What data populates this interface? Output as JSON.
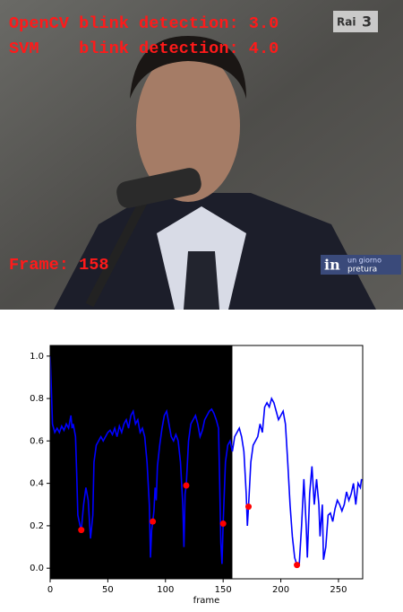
{
  "video": {
    "overlay_lines": [
      "OpenCV blink detection: 3.0",
      "SVM    blink detection: 4.0"
    ],
    "frame_label": "Frame: 158",
    "logo": "Rai",
    "logo_num": "3",
    "banner_big": "in",
    "banner_small": [
      "un giorno",
      "pretura"
    ]
  },
  "chart_data": {
    "type": "line",
    "xlabel": "frame",
    "xlim": [
      0,
      271
    ],
    "ylim": [
      -0.05,
      1.05
    ],
    "xticks": [
      0,
      50,
      100,
      150,
      200,
      250
    ],
    "yticks": [
      {
        "value": 0,
        "label": "0.0"
      },
      {
        "value": 0.2,
        "label": "0.2"
      },
      {
        "value": 0.4,
        "label": "0.4"
      },
      {
        "value": 0.6,
        "label": "0.6"
      },
      {
        "value": 0.8,
        "label": "0.8"
      },
      {
        "value": 1.0,
        "label": "1.0"
      }
    ],
    "shade_xrange": [
      0,
      158
    ],
    "shade_color": "#000000",
    "series": [
      {
        "color": "#0000ff",
        "style": "line",
        "x": [
          0,
          1,
          2,
          4,
          6,
          8,
          10,
          12,
          14,
          16,
          18,
          19,
          20,
          22,
          23,
          24,
          26,
          27,
          29,
          31,
          33,
          35,
          37,
          38,
          40,
          42,
          44,
          46,
          48,
          50,
          52,
          54,
          56,
          58,
          60,
          62,
          64,
          66,
          68,
          70,
          72,
          74,
          76,
          78,
          80,
          82,
          84,
          86,
          87,
          88,
          89,
          90,
          91,
          92,
          93,
          95,
          97,
          99,
          101,
          103,
          105,
          107,
          109,
          111,
          113,
          115,
          116,
          117,
          118,
          120,
          122,
          124,
          126,
          128,
          130,
          132,
          134,
          136,
          138,
          140,
          142,
          144,
          146,
          147,
          148,
          149,
          150,
          152,
          154,
          156,
          158,
          160,
          162,
          164,
          166,
          168,
          170,
          171,
          172,
          174,
          176,
          178,
          180,
          182,
          184,
          186,
          188,
          190,
          192,
          194,
          196,
          198,
          200,
          202,
          204,
          206,
          208,
          210,
          212,
          214,
          216,
          218,
          220,
          222,
          223,
          225,
          227,
          229,
          231,
          233,
          234,
          236,
          237,
          239,
          241,
          243,
          245,
          247,
          249,
          251,
          253,
          255,
          257,
          259,
          261,
          263,
          265,
          267,
          269,
          270
        ],
        "values": [
          1.0,
          0.85,
          0.68,
          0.64,
          0.66,
          0.64,
          0.67,
          0.65,
          0.68,
          0.66,
          0.72,
          0.66,
          0.68,
          0.62,
          0.45,
          0.25,
          0.2,
          0.18,
          0.3,
          0.38,
          0.32,
          0.14,
          0.25,
          0.5,
          0.58,
          0.6,
          0.62,
          0.6,
          0.62,
          0.64,
          0.65,
          0.63,
          0.66,
          0.62,
          0.67,
          0.64,
          0.68,
          0.7,
          0.66,
          0.72,
          0.74,
          0.68,
          0.7,
          0.64,
          0.66,
          0.62,
          0.5,
          0.3,
          0.05,
          0.18,
          0.22,
          0.27,
          0.38,
          0.32,
          0.48,
          0.58,
          0.66,
          0.72,
          0.74,
          0.68,
          0.62,
          0.6,
          0.63,
          0.6,
          0.5,
          0.3,
          0.1,
          0.35,
          0.39,
          0.6,
          0.68,
          0.7,
          0.72,
          0.68,
          0.62,
          0.65,
          0.7,
          0.72,
          0.74,
          0.75,
          0.73,
          0.7,
          0.66,
          0.4,
          0.12,
          0.02,
          0.21,
          0.5,
          0.58,
          0.6,
          0.55,
          0.62,
          0.64,
          0.66,
          0.62,
          0.55,
          0.35,
          0.2,
          0.29,
          0.5,
          0.58,
          0.6,
          0.62,
          0.68,
          0.64,
          0.76,
          0.78,
          0.76,
          0.8,
          0.78,
          0.74,
          0.7,
          0.72,
          0.74,
          0.68,
          0.5,
          0.3,
          0.15,
          0.05,
          0.015,
          0.02,
          0.2,
          0.42,
          0.2,
          0.05,
          0.35,
          0.48,
          0.3,
          0.42,
          0.3,
          0.15,
          0.3,
          0.04,
          0.1,
          0.25,
          0.26,
          0.22,
          0.28,
          0.32,
          0.3,
          0.27,
          0.3,
          0.36,
          0.32,
          0.35,
          0.4,
          0.3,
          0.4,
          0.38,
          0.42
        ]
      },
      {
        "color": "#ff0000",
        "style": "markers",
        "x": [
          27,
          89,
          118,
          150,
          172,
          214
        ],
        "values": [
          0.18,
          0.22,
          0.39,
          0.21,
          0.29,
          0.015
        ]
      }
    ]
  }
}
